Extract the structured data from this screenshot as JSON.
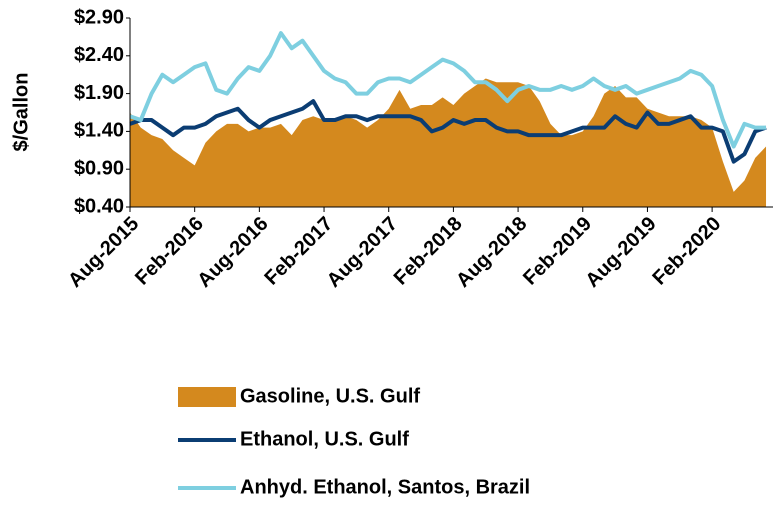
{
  "chart_data": {
    "type": "line",
    "ylabel": "$/Gallon",
    "categories": [
      "Aug-2015",
      null,
      null,
      null,
      null,
      null,
      "Feb-2016",
      null,
      null,
      null,
      null,
      null,
      "Aug-2016",
      null,
      null,
      null,
      null,
      null,
      "Feb-2017",
      null,
      null,
      null,
      null,
      null,
      "Aug-2017",
      null,
      null,
      null,
      null,
      null,
      "Feb-2018",
      null,
      null,
      null,
      null,
      null,
      "Aug-2018",
      null,
      null,
      null,
      null,
      null,
      "Feb-2019",
      null,
      null,
      null,
      null,
      null,
      "Aug-2019",
      null,
      null,
      null,
      null,
      null,
      "Feb-2020",
      null,
      null,
      null,
      null,
      null
    ],
    "series": [
      {
        "name": "Gasoline, U.S. Gulf",
        "type": "area",
        "color": "#d4891e",
        "values": [
          1.65,
          1.45,
          1.35,
          1.3,
          1.15,
          1.05,
          0.95,
          1.25,
          1.4,
          1.5,
          1.5,
          1.4,
          1.45,
          1.45,
          1.5,
          1.35,
          1.55,
          1.6,
          1.55,
          1.55,
          1.6,
          1.55,
          1.45,
          1.55,
          1.7,
          1.95,
          1.7,
          1.75,
          1.75,
          1.85,
          1.75,
          1.9,
          2.0,
          2.1,
          2.05,
          2.05,
          2.05,
          2.0,
          1.8,
          1.5,
          1.35,
          1.35,
          1.4,
          1.6,
          1.9,
          2.0,
          1.85,
          1.85,
          1.7,
          1.65,
          1.6,
          1.6,
          1.6,
          1.55,
          1.45,
          1.0,
          0.6,
          0.75,
          1.05,
          1.2
        ]
      },
      {
        "name": "Ethanol, U.S. Gulf",
        "type": "line",
        "color": "#0b3d73",
        "values": [
          1.5,
          1.55,
          1.55,
          1.45,
          1.35,
          1.45,
          1.45,
          1.5,
          1.6,
          1.65,
          1.7,
          1.55,
          1.45,
          1.55,
          1.6,
          1.65,
          1.7,
          1.8,
          1.55,
          1.55,
          1.6,
          1.6,
          1.55,
          1.6,
          1.6,
          1.6,
          1.6,
          1.55,
          1.4,
          1.45,
          1.55,
          1.5,
          1.55,
          1.55,
          1.45,
          1.4,
          1.4,
          1.35,
          1.35,
          1.35,
          1.35,
          1.4,
          1.45,
          1.45,
          1.45,
          1.6,
          1.5,
          1.45,
          1.65,
          1.5,
          1.5,
          1.55,
          1.6,
          1.45,
          1.45,
          1.4,
          1.0,
          1.1,
          1.4,
          1.45
        ]
      },
      {
        "name": "Anhyd. Ethanol, Santos, Brazil",
        "type": "line",
        "color": "#7ecfe0",
        "values": [
          1.6,
          1.55,
          1.9,
          2.15,
          2.05,
          2.15,
          2.25,
          2.3,
          1.95,
          1.9,
          2.1,
          2.25,
          2.2,
          2.4,
          2.7,
          2.5,
          2.6,
          2.4,
          2.2,
          2.1,
          2.05,
          1.9,
          1.9,
          2.05,
          2.1,
          2.1,
          2.05,
          2.15,
          2.25,
          2.35,
          2.3,
          2.2,
          2.05,
          2.05,
          1.95,
          1.8,
          1.95,
          2.0,
          1.95,
          1.95,
          2.0,
          1.95,
          2.0,
          2.1,
          2.0,
          1.95,
          2.0,
          1.9,
          1.95,
          2.0,
          2.05,
          2.1,
          2.2,
          2.15,
          2.0,
          1.55,
          1.2,
          1.5,
          1.45,
          1.45
        ]
      }
    ],
    "ylim": [
      0.4,
      2.9
    ],
    "yticks": [
      {
        "value": 0.4,
        "label": "$0.40"
      },
      {
        "value": 0.9,
        "label": "$0.90"
      },
      {
        "value": 1.4,
        "label": "$1.40"
      },
      {
        "value": 1.9,
        "label": "$1.90"
      },
      {
        "value": 2.4,
        "label": "$2.40"
      },
      {
        "value": 2.9,
        "label": "$2.90"
      }
    ],
    "grid": false,
    "legend": "bottom"
  }
}
